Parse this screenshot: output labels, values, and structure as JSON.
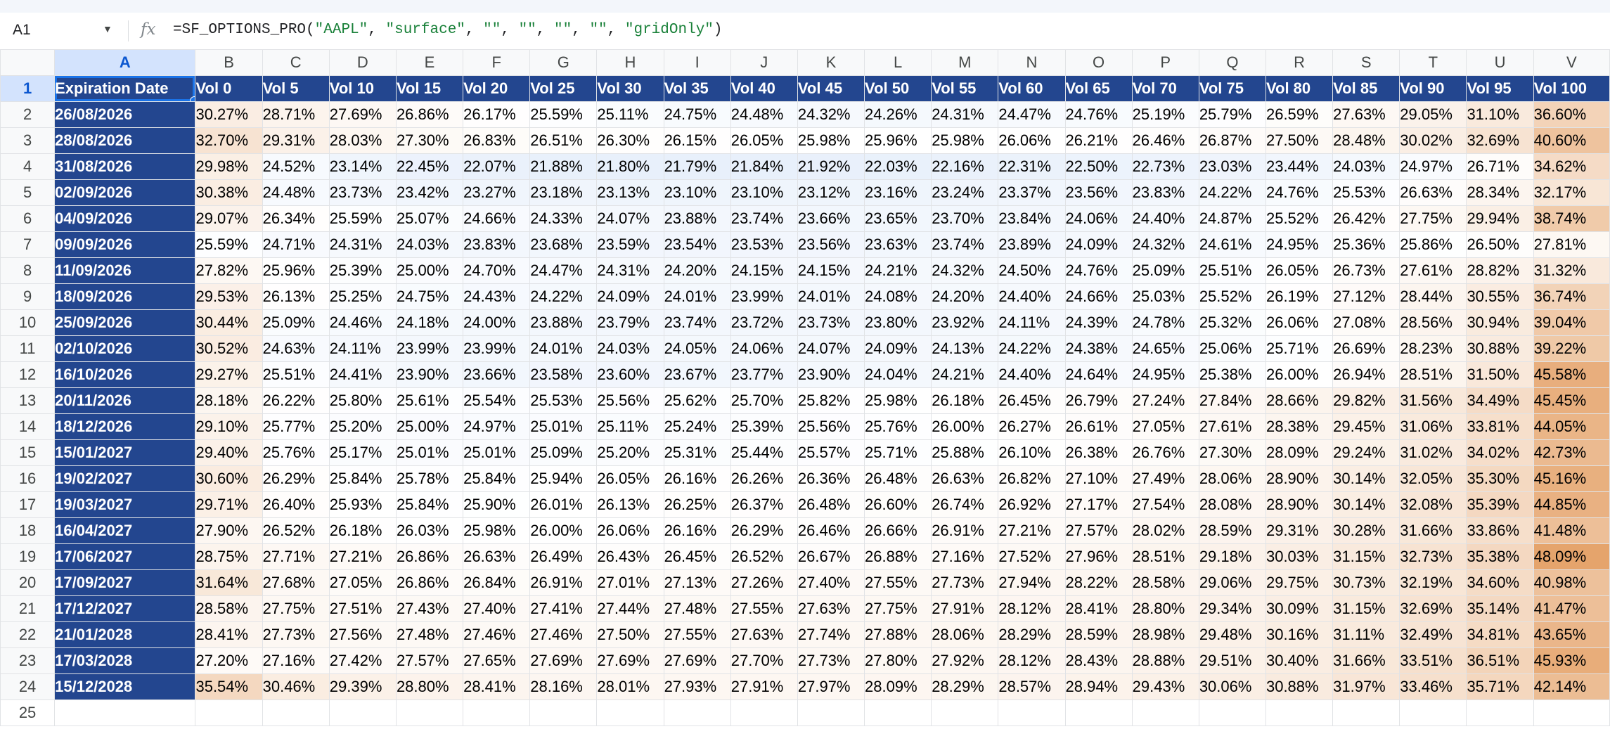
{
  "formula_bar": {
    "cell_ref": "A1",
    "dropdown_icon": "caret-down-icon",
    "fx_label": "fx",
    "formula_parts": [
      {
        "t": "=SF_OPTIONS_PRO(",
        "s": false
      },
      {
        "t": "\"AAPL\"",
        "s": true
      },
      {
        "t": ", ",
        "s": false
      },
      {
        "t": "\"surface\"",
        "s": true
      },
      {
        "t": ", ",
        "s": false
      },
      {
        "t": "\"\"",
        "s": true
      },
      {
        "t": ", ",
        "s": false
      },
      {
        "t": "\"\"",
        "s": true
      },
      {
        "t": ", ",
        "s": false
      },
      {
        "t": "\"\"",
        "s": true
      },
      {
        "t": ", ",
        "s": false
      },
      {
        "t": "\"\"",
        "s": true
      },
      {
        "t": ", ",
        "s": false
      },
      {
        "t": "\"gridOnly\"",
        "s": true
      },
      {
        "t": ")",
        "s": false
      }
    ]
  },
  "columns": [
    "A",
    "B",
    "C",
    "D",
    "E",
    "F",
    "G",
    "H",
    "I",
    "J",
    "K",
    "L",
    "M",
    "N",
    "O",
    "P",
    "Q",
    "R",
    "S",
    "T",
    "U",
    "V"
  ],
  "selected_column": "A",
  "selected_row": "1",
  "header_row": [
    "Expiration Date",
    "Vol 0",
    "Vol 5",
    "Vol 10",
    "Vol 15",
    "Vol 20",
    "Vol 25",
    "Vol 30",
    "Vol 35",
    "Vol 40",
    "Vol 45",
    "Vol 50",
    "Vol 55",
    "Vol 60",
    "Vol 65",
    "Vol 70",
    "Vol 75",
    "Vol 80",
    "Vol 85",
    "Vol 90",
    "Vol 95",
    "Vol 100"
  ],
  "rows": [
    {
      "date": "26/08/2026",
      "v": [
        "30.27%",
        "28.71%",
        "27.69%",
        "26.86%",
        "26.17%",
        "25.59%",
        "25.11%",
        "24.75%",
        "24.48%",
        "24.32%",
        "24.26%",
        "24.31%",
        "24.47%",
        "24.76%",
        "25.19%",
        "25.79%",
        "26.59%",
        "27.63%",
        "29.05%",
        "31.10%",
        "36.60%"
      ]
    },
    {
      "date": "28/08/2026",
      "v": [
        "32.70%",
        "29.31%",
        "28.03%",
        "27.30%",
        "26.83%",
        "26.51%",
        "26.30%",
        "26.15%",
        "26.05%",
        "25.98%",
        "25.96%",
        "25.98%",
        "26.06%",
        "26.21%",
        "26.46%",
        "26.87%",
        "27.50%",
        "28.48%",
        "30.02%",
        "32.69%",
        "40.60%"
      ]
    },
    {
      "date": "31/08/2026",
      "v": [
        "29.98%",
        "24.52%",
        "23.14%",
        "22.45%",
        "22.07%",
        "21.88%",
        "21.80%",
        "21.79%",
        "21.84%",
        "21.92%",
        "22.03%",
        "22.16%",
        "22.31%",
        "22.50%",
        "22.73%",
        "23.03%",
        "23.44%",
        "24.03%",
        "24.97%",
        "26.71%",
        "34.62%"
      ]
    },
    {
      "date": "02/09/2026",
      "v": [
        "30.38%",
        "24.48%",
        "23.73%",
        "23.42%",
        "23.27%",
        "23.18%",
        "23.13%",
        "23.10%",
        "23.10%",
        "23.12%",
        "23.16%",
        "23.24%",
        "23.37%",
        "23.56%",
        "23.83%",
        "24.22%",
        "24.76%",
        "25.53%",
        "26.63%",
        "28.34%",
        "32.17%"
      ]
    },
    {
      "date": "04/09/2026",
      "v": [
        "29.07%",
        "26.34%",
        "25.59%",
        "25.07%",
        "24.66%",
        "24.33%",
        "24.07%",
        "23.88%",
        "23.74%",
        "23.66%",
        "23.65%",
        "23.70%",
        "23.84%",
        "24.06%",
        "24.40%",
        "24.87%",
        "25.52%",
        "26.42%",
        "27.75%",
        "29.94%",
        "38.74%"
      ]
    },
    {
      "date": "09/09/2026",
      "v": [
        "25.59%",
        "24.71%",
        "24.31%",
        "24.03%",
        "23.83%",
        "23.68%",
        "23.59%",
        "23.54%",
        "23.53%",
        "23.56%",
        "23.63%",
        "23.74%",
        "23.89%",
        "24.09%",
        "24.32%",
        "24.61%",
        "24.95%",
        "25.36%",
        "25.86%",
        "26.50%",
        "27.81%"
      ]
    },
    {
      "date": "11/09/2026",
      "v": [
        "27.82%",
        "25.96%",
        "25.39%",
        "25.00%",
        "24.70%",
        "24.47%",
        "24.31%",
        "24.20%",
        "24.15%",
        "24.15%",
        "24.21%",
        "24.32%",
        "24.50%",
        "24.76%",
        "25.09%",
        "25.51%",
        "26.05%",
        "26.73%",
        "27.61%",
        "28.82%",
        "31.32%"
      ]
    },
    {
      "date": "18/09/2026",
      "v": [
        "29.53%",
        "26.13%",
        "25.25%",
        "24.75%",
        "24.43%",
        "24.22%",
        "24.09%",
        "24.01%",
        "23.99%",
        "24.01%",
        "24.08%",
        "24.20%",
        "24.40%",
        "24.66%",
        "25.03%",
        "25.52%",
        "26.19%",
        "27.12%",
        "28.44%",
        "30.55%",
        "36.74%"
      ]
    },
    {
      "date": "25/09/2026",
      "v": [
        "30.44%",
        "25.09%",
        "24.46%",
        "24.18%",
        "24.00%",
        "23.88%",
        "23.79%",
        "23.74%",
        "23.72%",
        "23.73%",
        "23.80%",
        "23.92%",
        "24.11%",
        "24.39%",
        "24.78%",
        "25.32%",
        "26.06%",
        "27.08%",
        "28.56%",
        "30.94%",
        "39.04%"
      ]
    },
    {
      "date": "02/10/2026",
      "v": [
        "30.52%",
        "24.63%",
        "24.11%",
        "23.99%",
        "23.99%",
        "24.01%",
        "24.03%",
        "24.05%",
        "24.06%",
        "24.07%",
        "24.09%",
        "24.13%",
        "24.22%",
        "24.38%",
        "24.65%",
        "25.06%",
        "25.71%",
        "26.69%",
        "28.23%",
        "30.88%",
        "39.22%"
      ]
    },
    {
      "date": "16/10/2026",
      "v": [
        "29.27%",
        "25.51%",
        "24.41%",
        "23.90%",
        "23.66%",
        "23.58%",
        "23.60%",
        "23.67%",
        "23.77%",
        "23.90%",
        "24.04%",
        "24.21%",
        "24.40%",
        "24.64%",
        "24.95%",
        "25.38%",
        "26.00%",
        "26.94%",
        "28.51%",
        "31.50%",
        "45.58%"
      ]
    },
    {
      "date": "20/11/2026",
      "v": [
        "28.18%",
        "26.22%",
        "25.80%",
        "25.61%",
        "25.54%",
        "25.53%",
        "25.56%",
        "25.62%",
        "25.70%",
        "25.82%",
        "25.98%",
        "26.18%",
        "26.45%",
        "26.79%",
        "27.24%",
        "27.84%",
        "28.66%",
        "29.82%",
        "31.56%",
        "34.49%",
        "45.45%"
      ]
    },
    {
      "date": "18/12/2026",
      "v": [
        "29.10%",
        "25.77%",
        "25.20%",
        "25.00%",
        "24.97%",
        "25.01%",
        "25.11%",
        "25.24%",
        "25.39%",
        "25.56%",
        "25.76%",
        "26.00%",
        "26.27%",
        "26.61%",
        "27.05%",
        "27.61%",
        "28.38%",
        "29.45%",
        "31.06%",
        "33.81%",
        "44.05%"
      ]
    },
    {
      "date": "15/01/2027",
      "v": [
        "29.40%",
        "25.76%",
        "25.17%",
        "25.01%",
        "25.01%",
        "25.09%",
        "25.20%",
        "25.31%",
        "25.44%",
        "25.57%",
        "25.71%",
        "25.88%",
        "26.10%",
        "26.38%",
        "26.76%",
        "27.30%",
        "28.09%",
        "29.24%",
        "31.02%",
        "34.02%",
        "42.73%"
      ]
    },
    {
      "date": "19/02/2027",
      "v": [
        "30.60%",
        "26.29%",
        "25.84%",
        "25.78%",
        "25.84%",
        "25.94%",
        "26.05%",
        "26.16%",
        "26.26%",
        "26.36%",
        "26.48%",
        "26.63%",
        "26.82%",
        "27.10%",
        "27.49%",
        "28.06%",
        "28.90%",
        "30.14%",
        "32.05%",
        "35.30%",
        "45.16%"
      ]
    },
    {
      "date": "19/03/2027",
      "v": [
        "29.71%",
        "26.40%",
        "25.93%",
        "25.84%",
        "25.90%",
        "26.01%",
        "26.13%",
        "26.25%",
        "26.37%",
        "26.48%",
        "26.60%",
        "26.74%",
        "26.92%",
        "27.17%",
        "27.54%",
        "28.08%",
        "28.90%",
        "30.14%",
        "32.08%",
        "35.39%",
        "44.85%"
      ]
    },
    {
      "date": "16/04/2027",
      "v": [
        "27.90%",
        "26.52%",
        "26.18%",
        "26.03%",
        "25.98%",
        "26.00%",
        "26.06%",
        "26.16%",
        "26.29%",
        "26.46%",
        "26.66%",
        "26.91%",
        "27.21%",
        "27.57%",
        "28.02%",
        "28.59%",
        "29.31%",
        "30.28%",
        "31.66%",
        "33.86%",
        "41.48%"
      ]
    },
    {
      "date": "17/06/2027",
      "v": [
        "28.75%",
        "27.71%",
        "27.21%",
        "26.86%",
        "26.63%",
        "26.49%",
        "26.43%",
        "26.45%",
        "26.52%",
        "26.67%",
        "26.88%",
        "27.16%",
        "27.52%",
        "27.96%",
        "28.51%",
        "29.18%",
        "30.03%",
        "31.15%",
        "32.73%",
        "35.38%",
        "48.09%"
      ]
    },
    {
      "date": "17/09/2027",
      "v": [
        "31.64%",
        "27.68%",
        "27.05%",
        "26.86%",
        "26.84%",
        "26.91%",
        "27.01%",
        "27.13%",
        "27.26%",
        "27.40%",
        "27.55%",
        "27.73%",
        "27.94%",
        "28.22%",
        "28.58%",
        "29.06%",
        "29.75%",
        "30.73%",
        "32.19%",
        "34.60%",
        "40.98%"
      ]
    },
    {
      "date": "17/12/2027",
      "v": [
        "28.58%",
        "27.75%",
        "27.51%",
        "27.43%",
        "27.40%",
        "27.41%",
        "27.44%",
        "27.48%",
        "27.55%",
        "27.63%",
        "27.75%",
        "27.91%",
        "28.12%",
        "28.41%",
        "28.80%",
        "29.34%",
        "30.09%",
        "31.15%",
        "32.69%",
        "35.14%",
        "41.47%"
      ]
    },
    {
      "date": "21/01/2028",
      "v": [
        "28.41%",
        "27.73%",
        "27.56%",
        "27.48%",
        "27.46%",
        "27.46%",
        "27.50%",
        "27.55%",
        "27.63%",
        "27.74%",
        "27.88%",
        "28.06%",
        "28.29%",
        "28.59%",
        "28.98%",
        "29.48%",
        "30.16%",
        "31.11%",
        "32.49%",
        "34.81%",
        "43.65%"
      ]
    },
    {
      "date": "17/03/2028",
      "v": [
        "27.20%",
        "27.16%",
        "27.42%",
        "27.57%",
        "27.65%",
        "27.69%",
        "27.69%",
        "27.69%",
        "27.70%",
        "27.73%",
        "27.80%",
        "27.92%",
        "28.12%",
        "28.43%",
        "28.88%",
        "29.51%",
        "30.40%",
        "31.66%",
        "33.51%",
        "36.51%",
        "45.93%"
      ]
    },
    {
      "date": "15/12/2028",
      "v": [
        "35.54%",
        "30.46%",
        "29.39%",
        "28.80%",
        "28.41%",
        "28.16%",
        "28.01%",
        "27.93%",
        "27.91%",
        "27.97%",
        "28.09%",
        "28.29%",
        "28.57%",
        "28.94%",
        "29.43%",
        "30.06%",
        "30.88%",
        "31.97%",
        "33.46%",
        "35.71%",
        "42.14%"
      ]
    }
  ],
  "empty_row_number": "25",
  "colors": {
    "header_bg": "#23468f",
    "header_text": "#ffffff",
    "low_color": "#e8f0fb",
    "mid_color": "#ffffff",
    "high_color": "#e5a46c",
    "selection": "#1a73e8"
  }
}
